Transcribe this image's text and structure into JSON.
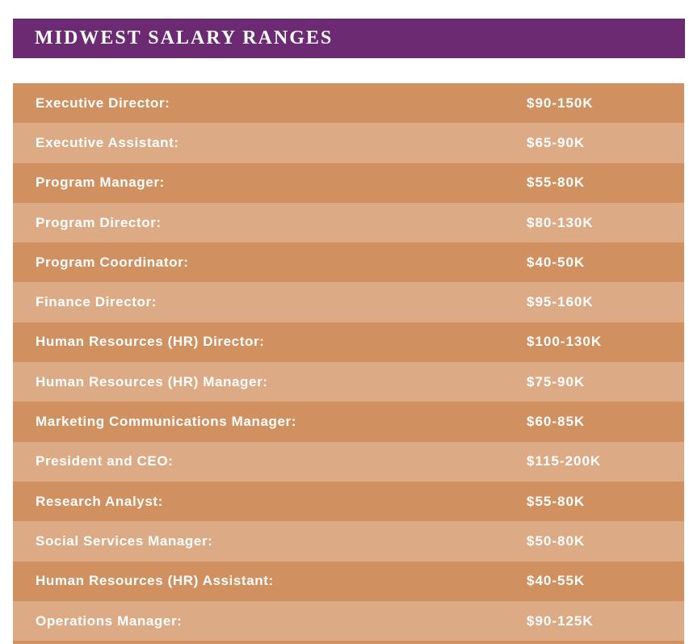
{
  "header": {
    "title": "MIDWEST SALARY RANGES"
  },
  "table": {
    "rows": [
      {
        "label": "Executive Director:",
        "range": "$90-150K"
      },
      {
        "label": "Executive Assistant:",
        "range": "$65-90K"
      },
      {
        "label": "Program Manager:",
        "range": "$55-80K"
      },
      {
        "label": "Program Director:",
        "range": "$80-130K"
      },
      {
        "label": "Program Coordinator:",
        "range": "$40-50K"
      },
      {
        "label": "Finance Director:",
        "range": "$95-160K"
      },
      {
        "label": "Human Resources (HR) Director:",
        "range": "$100-130K"
      },
      {
        "label": "Human Resources (HR) Manager:",
        "range": "$75-90K"
      },
      {
        "label": "Marketing Communications Manager:",
        "range": "$60-85K"
      },
      {
        "label": "President and CEO:",
        "range": "$115-200K"
      },
      {
        "label": "Research Analyst:",
        "range": "$55-80K"
      },
      {
        "label": "Social Services Manager:",
        "range": "$50-80K"
      },
      {
        "label": "Human Resources (HR) Assistant:",
        "range": "$40-55K"
      },
      {
        "label": "Operations Manager:",
        "range": "$90-125K"
      }
    ]
  },
  "colors": {
    "header_bg": "#6B2A72",
    "row_dark": "#D1905F",
    "row_light": "#DCAB85",
    "text_color": "#FFFFFF",
    "page_bg": "#FFFFFF"
  }
}
